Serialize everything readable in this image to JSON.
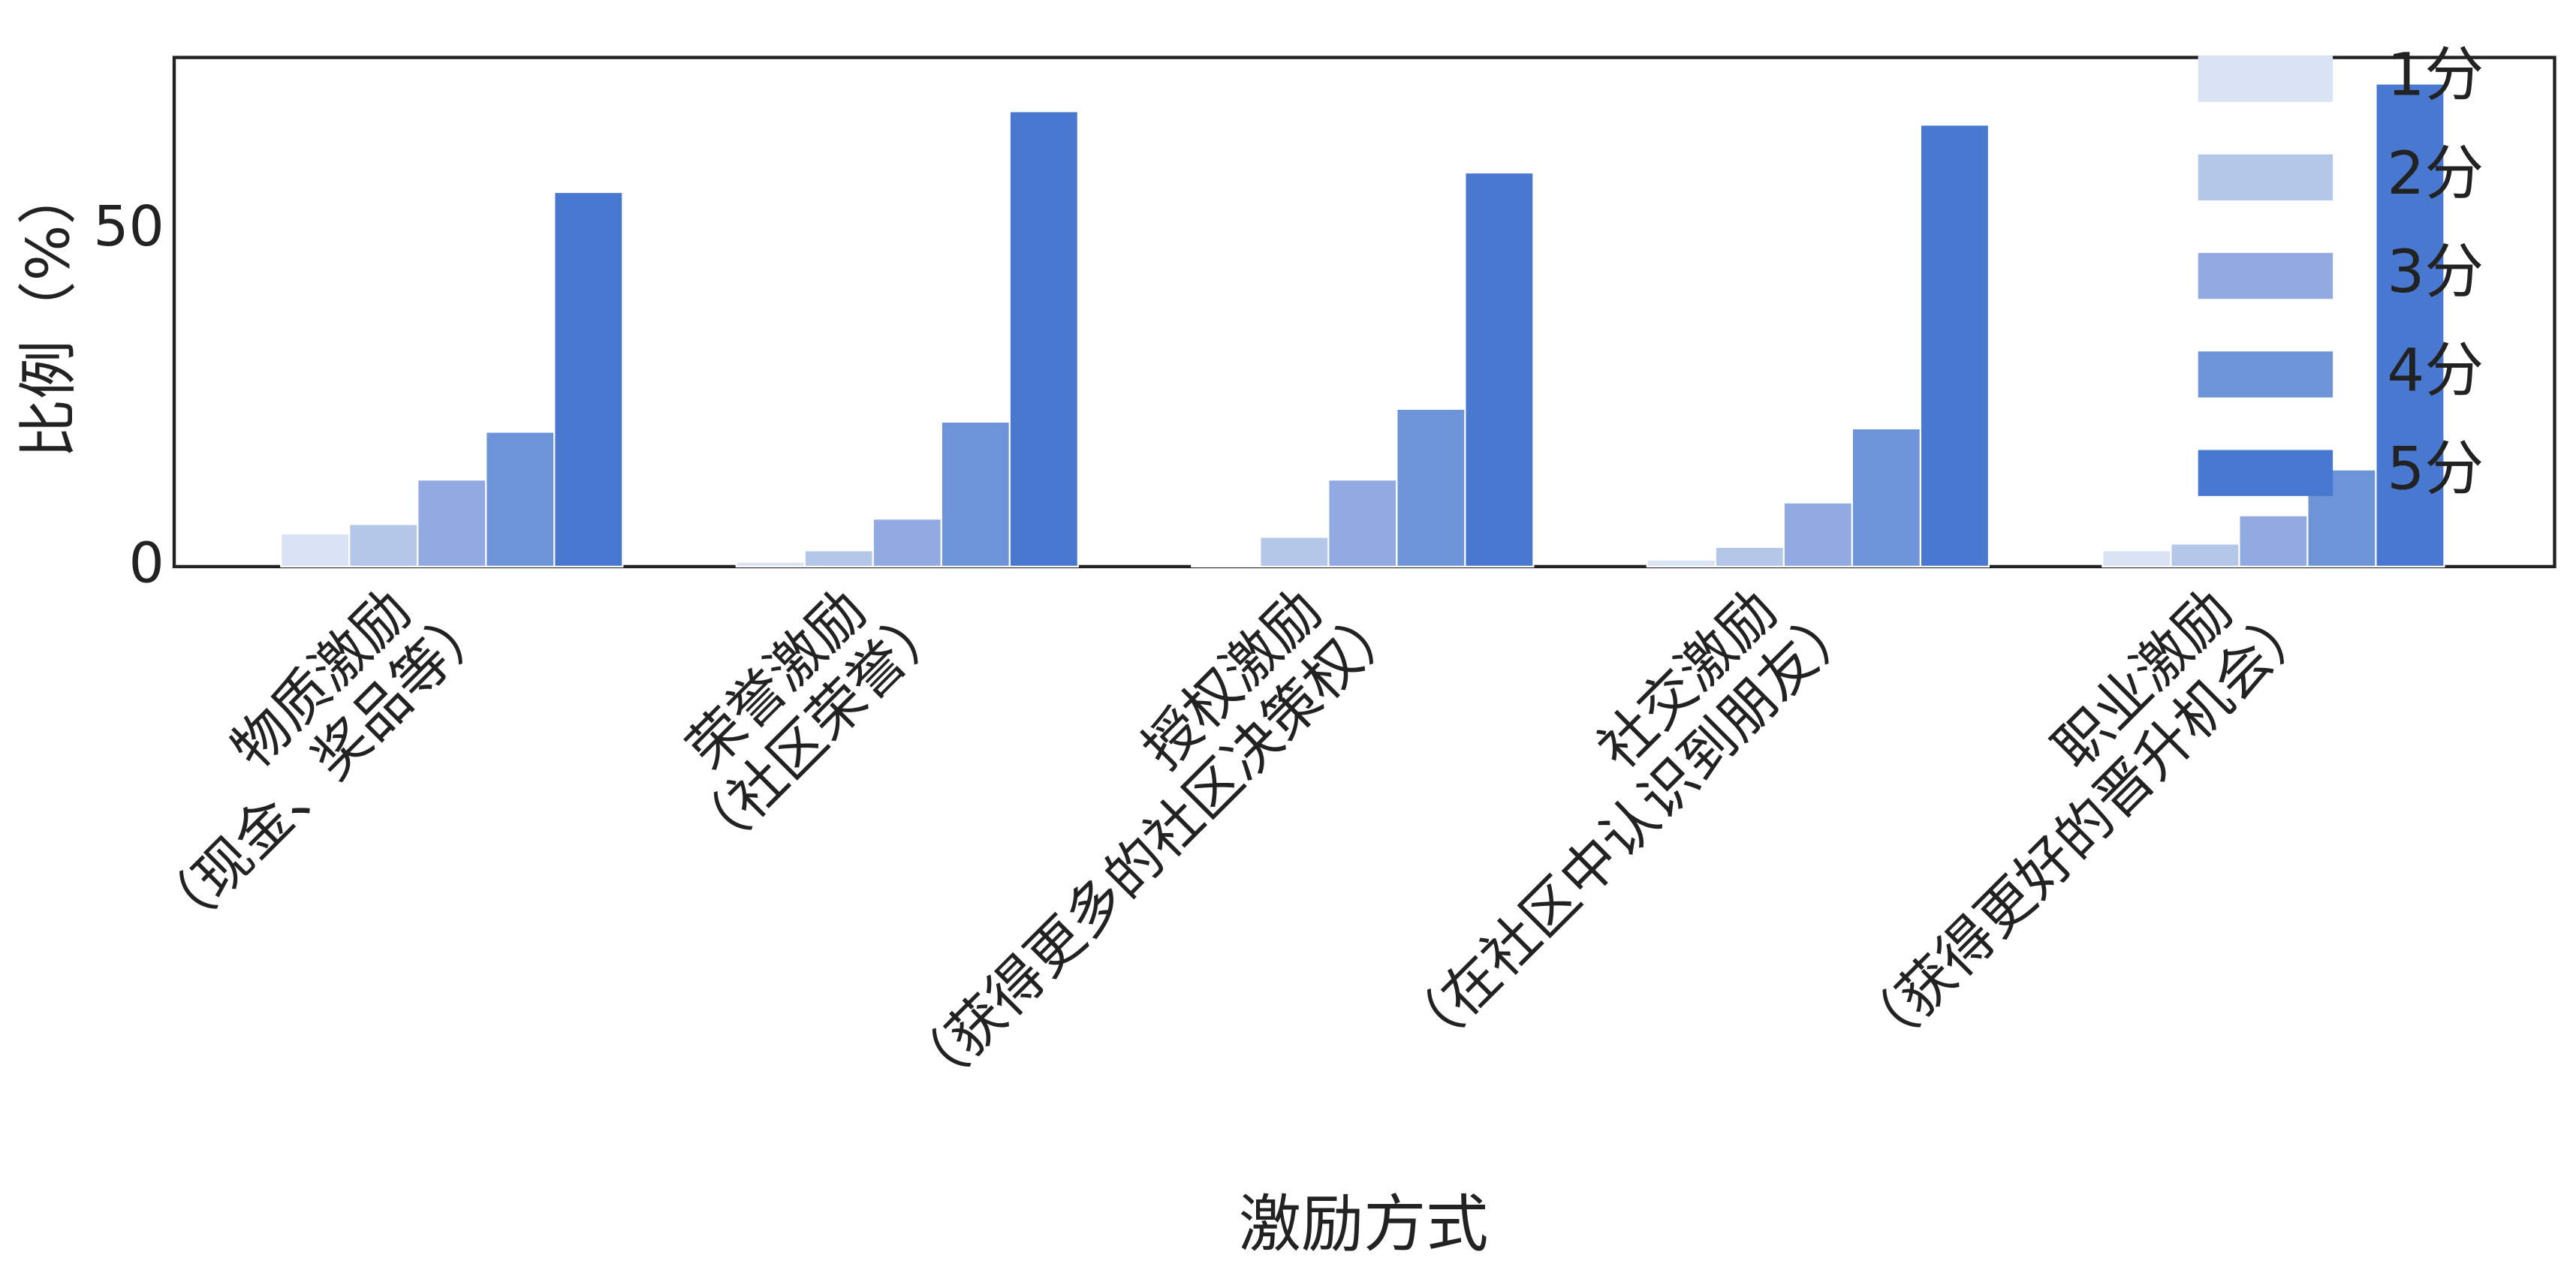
{
  "chart_data": {
    "type": "bar",
    "categories": [
      "物质激励\n（现金、奖品等）",
      "荣誉激励\n（社区荣誉）",
      "授权激励\n（获得更多的社区决策权）",
      "社交激励\n（在社区中认识到朋友）",
      "职业激励\n（获得更好的晋升机会）"
    ],
    "series": [
      {
        "name": "1分",
        "color": "#dae3f3",
        "values": [
          4.9,
          0.7,
          0.2,
          1.0,
          2.4
        ]
      },
      {
        "name": "2分",
        "color": "#b4c7e9",
        "values": [
          6.3,
          2.4,
          4.4,
          2.9,
          3.4
        ]
      },
      {
        "name": "3分",
        "color": "#91abe2",
        "values": [
          12.9,
          7.1,
          12.9,
          9.5,
          7.6
        ]
      },
      {
        "name": "4分",
        "color": "#6d93d9",
        "values": [
          20.0,
          21.5,
          23.4,
          20.5,
          14.4
        ]
      },
      {
        "name": "5分",
        "color": "#4878d0",
        "values": [
          55.6,
          67.6,
          58.5,
          65.6,
          71.7
        ]
      }
    ],
    "xlabel": "激励方式",
    "ylabel": "比例（%）",
    "ylim": [
      0,
      75.6
    ],
    "yticks": [
      0,
      50
    ],
    "grid": false,
    "legend": "upper right"
  }
}
